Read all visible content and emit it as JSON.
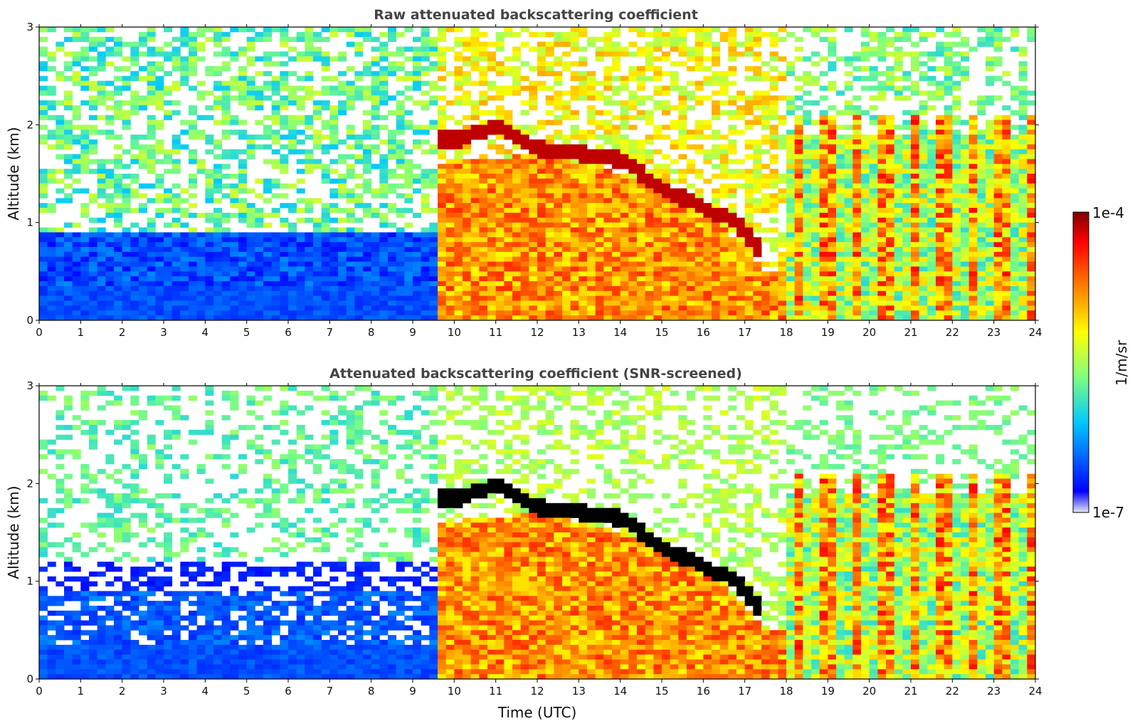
{
  "chart_data": [
    {
      "type": "heatmap",
      "title": "Raw attenuated backscattering coefficient",
      "xlabel": "",
      "ylabel": "Altitude (km)",
      "xlim": [
        0,
        24
      ],
      "ylim": [
        0,
        3
      ],
      "x_ticks": [
        0,
        1,
        2,
        3,
        4,
        5,
        6,
        7,
        8,
        9,
        10,
        11,
        12,
        13,
        14,
        15,
        16,
        17,
        18,
        19,
        20,
        21,
        22,
        23,
        24
      ],
      "y_ticks": [
        0,
        1,
        2,
        3
      ],
      "screened": false,
      "colormap": "jet",
      "features": {
        "clear_period_utc": [
          0,
          9.55
        ],
        "aerosol_layer_onset_utc": 9.55,
        "aerosol_layer_top_km": [
          [
            9.55,
            1.6
          ],
          [
            12,
            1.7
          ],
          [
            14,
            1.5
          ],
          [
            16,
            1.15
          ],
          [
            17,
            0.75
          ],
          [
            17.5,
            0.5
          ]
        ],
        "cloud_top_line_km": [
          [
            10.2,
            1.85
          ],
          [
            11,
            2.0
          ],
          [
            12,
            1.75
          ],
          [
            13,
            1.7
          ],
          [
            14,
            1.65
          ],
          [
            15,
            1.35
          ],
          [
            16,
            1.15
          ],
          [
            16.8,
            1.0
          ],
          [
            17.3,
            0.75
          ]
        ],
        "upper_cloud_patches": [
          [
            7.0,
            2.75
          ],
          [
            7.9,
            2.8
          ],
          [
            9.0,
            2.85
          ]
        ]
      }
    },
    {
      "type": "heatmap",
      "title": "Attenuated backscattering coefficient (SNR-screened)",
      "xlabel": "Time (UTC)",
      "ylabel": "Altitude (km)",
      "xlim": [
        0,
        24
      ],
      "ylim": [
        0,
        3
      ],
      "x_ticks": [
        0,
        1,
        2,
        3,
        4,
        5,
        6,
        7,
        8,
        9,
        10,
        11,
        12,
        13,
        14,
        15,
        16,
        17,
        18,
        19,
        20,
        21,
        22,
        23,
        24
      ],
      "y_ticks": [
        0,
        1,
        2,
        3
      ],
      "screened": true,
      "colormap": "jet",
      "features": {
        "saturated_color": "#000000",
        "clear_period_utc": [
          0,
          9.55
        ],
        "aerosol_layer_onset_utc": 9.55
      }
    }
  ],
  "colorbar": {
    "max_label": "1e-4",
    "min_label": "1e-7",
    "unit_label": "1/m/sr",
    "colors": [
      "#e6e6fa",
      "#0000ff",
      "#00c8ff",
      "#7fff7f",
      "#ffff00",
      "#ff8000",
      "#ff0000",
      "#7f0000"
    ]
  }
}
